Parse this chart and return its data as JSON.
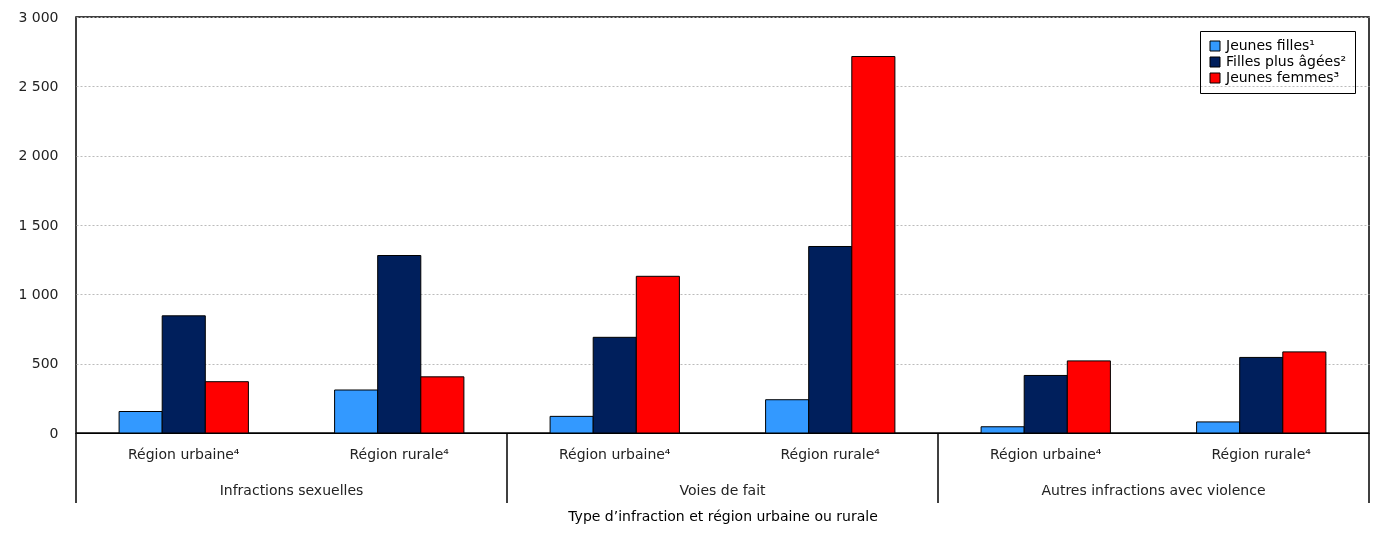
{
  "chart_data": {
    "type": "bar",
    "xlabel": "Type d’infraction et région urbaine ou rurale",
    "categories": [
      "Région urbaine⁴",
      "Région rurale⁴",
      "Région urbaine⁴",
      "Région rurale⁴",
      "Région urbaine⁴",
      "Région rurale⁴"
    ],
    "series": [
      {
        "name": "Jeunes filles¹",
        "color": "#3399ff",
        "values": [
          155,
          310,
          120,
          240,
          45,
          80
        ]
      },
      {
        "name": "Filles plus âgées²",
        "color": "#001f5c",
        "values": [
          845,
          1280,
          690,
          1345,
          415,
          545
        ]
      },
      {
        "name": "Jeunes femmes³",
        "color": "#ff0000",
        "values": [
          370,
          405,
          1130,
          2715,
          520,
          585
        ]
      }
    ],
    "annotations": [
      "Infractions sexuelles",
      "Voies de fait",
      "Autres infractions avec violence"
    ],
    "ylim": [
      0,
      3000
    ],
    "yticks": [
      {
        "value": 0,
        "label": "0"
      },
      {
        "value": 500,
        "label": "500"
      },
      {
        "value": 1000,
        "label": "1 000"
      },
      {
        "value": 1500,
        "label": "1 500"
      },
      {
        "value": 2000,
        "label": "2 000"
      },
      {
        "value": 2500,
        "label": "2 500"
      },
      {
        "value": 3000,
        "label": "3 000"
      }
    ],
    "grid": "y",
    "legend": "top right"
  }
}
